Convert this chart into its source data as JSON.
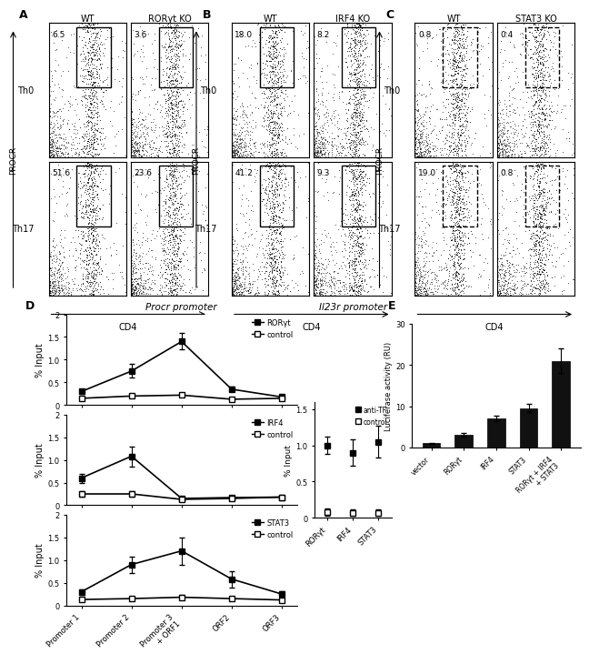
{
  "panel_labels": [
    "A",
    "B",
    "C",
    "D",
    "E"
  ],
  "flow_panels": {
    "A": {
      "title_cols": [
        "WT",
        "RORγt KO"
      ],
      "row_labels": [
        "Th0",
        "Th17"
      ],
      "values": [
        [
          "6.5",
          "3.6"
        ],
        [
          "51.6",
          "23.6"
        ]
      ],
      "xlabel": "CD4",
      "ylabel": "PROCR",
      "box_dashed": [
        [
          false,
          false
        ],
        [
          false,
          false
        ]
      ]
    },
    "B": {
      "title_cols": [
        "WT",
        "IRF4 KO"
      ],
      "row_labels": [
        "Th0",
        "Th17"
      ],
      "values": [
        [
          "18.0",
          "8.2"
        ],
        [
          "41.2",
          "9.3"
        ]
      ],
      "xlabel": "CD4",
      "ylabel": "PROCR",
      "box_dashed": [
        [
          false,
          false
        ],
        [
          false,
          false
        ]
      ]
    },
    "C": {
      "title_cols": [
        "WT",
        "STAT3 KO"
      ],
      "row_labels": [
        "Th0",
        "Th17"
      ],
      "values": [
        [
          "0.8",
          "0.4"
        ],
        [
          "19.0",
          "0.8"
        ]
      ],
      "xlabel": "CD4",
      "ylabel": "PROCR",
      "box_dashed": [
        [
          true,
          true
        ],
        [
          true,
          true
        ]
      ]
    }
  },
  "chip_xticklabels": [
    "Promoter 1",
    "Promoter 2",
    "Promoter 3\n+ ORF1",
    "ORF2",
    "ORF3"
  ],
  "chip_xlim": [
    -0.3,
    4.3
  ],
  "chip_ylim": [
    0,
    2
  ],
  "chip_yticks": [
    0,
    0.5,
    1.0,
    1.5,
    2.0
  ],
  "chip_yticklabels": [
    "0",
    "0.5",
    "1.0",
    "1.5",
    "2"
  ],
  "chip_ylabel": "% Input",
  "chip_RORgt": {
    "tf_values": [
      0.3,
      0.75,
      1.4,
      0.35,
      0.18
    ],
    "tf_err": [
      0.05,
      0.15,
      0.18,
      0.05,
      0.04
    ],
    "ctrl_values": [
      0.15,
      0.2,
      0.22,
      0.13,
      0.15
    ],
    "ctrl_err": [
      0.04,
      0.04,
      0.04,
      0.03,
      0.03
    ],
    "label_tf": "RORγt",
    "label_ctrl": "control"
  },
  "chip_IRF4": {
    "tf_values": [
      0.6,
      1.08,
      0.15,
      0.17,
      0.18
    ],
    "tf_err": [
      0.1,
      0.22,
      0.03,
      0.04,
      0.04
    ],
    "ctrl_values": [
      0.25,
      0.25,
      0.13,
      0.15,
      0.18
    ],
    "ctrl_err": [
      0.06,
      0.06,
      0.03,
      0.04,
      0.04
    ],
    "label_tf": "IRF4",
    "label_ctrl": "control"
  },
  "chip_STAT3": {
    "tf_values": [
      0.3,
      0.9,
      1.2,
      0.58,
      0.25
    ],
    "tf_err": [
      0.06,
      0.18,
      0.3,
      0.18,
      0.06
    ],
    "ctrl_values": [
      0.13,
      0.15,
      0.18,
      0.15,
      0.12
    ],
    "ctrl_err": [
      0.03,
      0.03,
      0.05,
      0.04,
      0.03
    ],
    "label_tf": "STAT3",
    "label_ctrl": "control"
  },
  "il23r_xlabels": [
    "RORγt",
    "IRF4",
    "STAT3"
  ],
  "il23r_antitf_values": [
    1.0,
    0.9,
    1.05
  ],
  "il23r_antitf_err": [
    0.12,
    0.18,
    0.22
  ],
  "il23r_ctrl_values": [
    0.08,
    0.07,
    0.07
  ],
  "il23r_ctrl_err": [
    0.05,
    0.04,
    0.04
  ],
  "il23r_ylim": [
    0,
    1.6
  ],
  "il23r_yticks": [
    0,
    0.5,
    1.0,
    1.5
  ],
  "il23r_yticklabels": [
    "0",
    "0.5",
    "1.0",
    "1.5"
  ],
  "il23r_ylabel": "% Input",
  "il23r_legend_antitf": "anti-TF",
  "il23r_legend_ctrl": "control",
  "luc_categories": [
    "vector",
    "RORγt",
    "IRF4",
    "STAT3",
    "RORγt + IRF4\n+ STAT3"
  ],
  "luc_values": [
    1.0,
    3.0,
    7.0,
    9.5,
    21.0
  ],
  "luc_err": [
    0.15,
    0.4,
    0.7,
    1.0,
    3.0
  ],
  "luc_ylim": [
    0,
    30
  ],
  "luc_yticks": [
    0,
    10,
    20,
    30
  ],
  "luc_yticklabels": [
    "0",
    "10",
    "20",
    "30"
  ],
  "luc_ylabel": "Luciferase activity (RU)",
  "luc_bar_color": "#111111",
  "procr_title": "Procr promoter",
  "il23r_subplot_title": "Il23r promoter"
}
